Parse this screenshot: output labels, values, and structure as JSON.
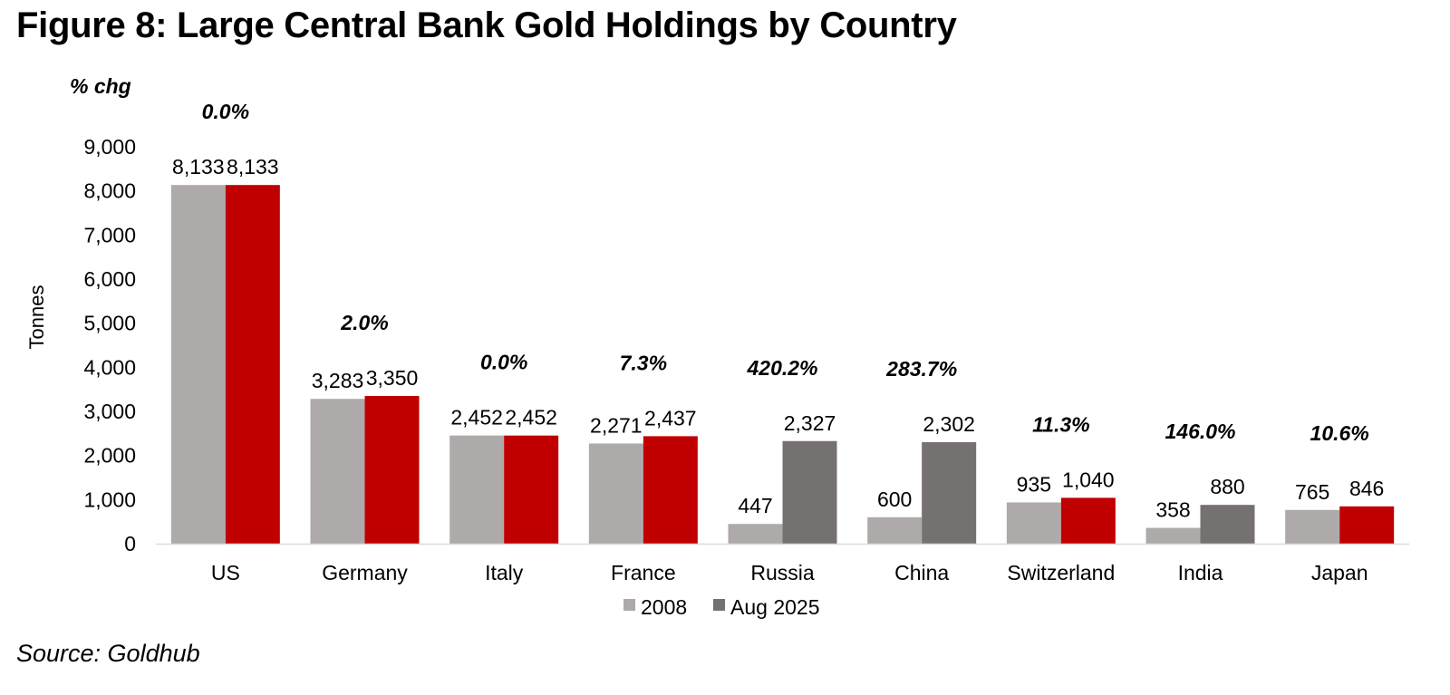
{
  "title": "Figure 8: Large Central Bank Gold Holdings by Country",
  "source": "Source: Goldhub",
  "chart_data": {
    "type": "bar",
    "categories": [
      "US",
      "Germany",
      "Italy",
      "France",
      "Russia",
      "China",
      "Switzerland",
      "India",
      "Japan"
    ],
    "series": [
      {
        "name": "2008",
        "values": [
          8133,
          3283,
          2452,
          2271,
          447,
          600,
          935,
          358,
          765
        ],
        "color": "#aeaaaa"
      },
      {
        "name": "Aug 2025",
        "values": [
          8133,
          3350,
          2452,
          2437,
          2327,
          2302,
          1040,
          880,
          846
        ],
        "color": "#c00000"
      }
    ],
    "data_labels": [
      [
        "8,133",
        "3,283",
        "2,452",
        "2,271",
        "447",
        "600",
        "935",
        "358",
        "765"
      ],
      [
        "8,133",
        "3,350",
        "2,452",
        "2,437",
        "2,327",
        "2,302",
        "1,040",
        "880",
        "846"
      ]
    ],
    "alt_bar_color": "#767171",
    "alt_bar_categories": [
      "Russia",
      "China",
      "India"
    ],
    "pct_change_label": "% chg",
    "pct_change": [
      "0.0%",
      "2.0%",
      "0.0%",
      "7.3%",
      "420.2%",
      "283.7%",
      "11.3%",
      "146.0%",
      "10.6%"
    ],
    "ylabel": "Tonnes",
    "ylim": [
      0,
      9000
    ],
    "yticks": [
      0,
      1000,
      2000,
      3000,
      4000,
      5000,
      6000,
      7000,
      8000,
      9000
    ],
    "ytick_labels": [
      "0",
      "1,000",
      "2,000",
      "3,000",
      "4,000",
      "5,000",
      "6,000",
      "7,000",
      "8,000",
      "9,000"
    ],
    "legend": [
      "2008",
      "Aug 2025"
    ],
    "legend_position": "bottom",
    "grid": false
  }
}
